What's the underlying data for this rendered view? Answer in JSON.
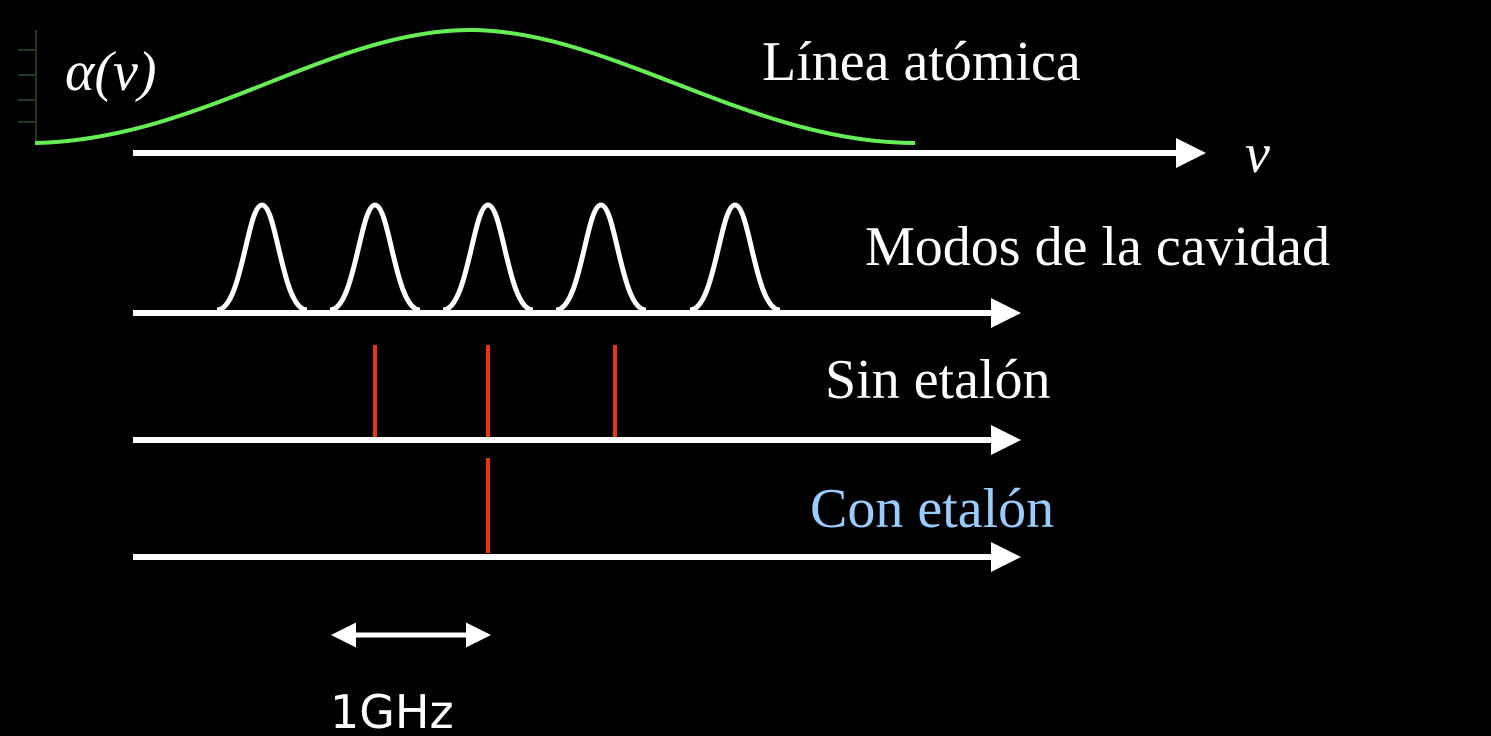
{
  "curve_label": "α(ν)",
  "axis_label": "ν",
  "rows": [
    {
      "label": "Línea atómica"
    },
    {
      "label": "Modos de la cavidad"
    },
    {
      "label": "Sin etalón"
    },
    {
      "label": "Con etalón"
    }
  ],
  "scale": "1GHz"
}
